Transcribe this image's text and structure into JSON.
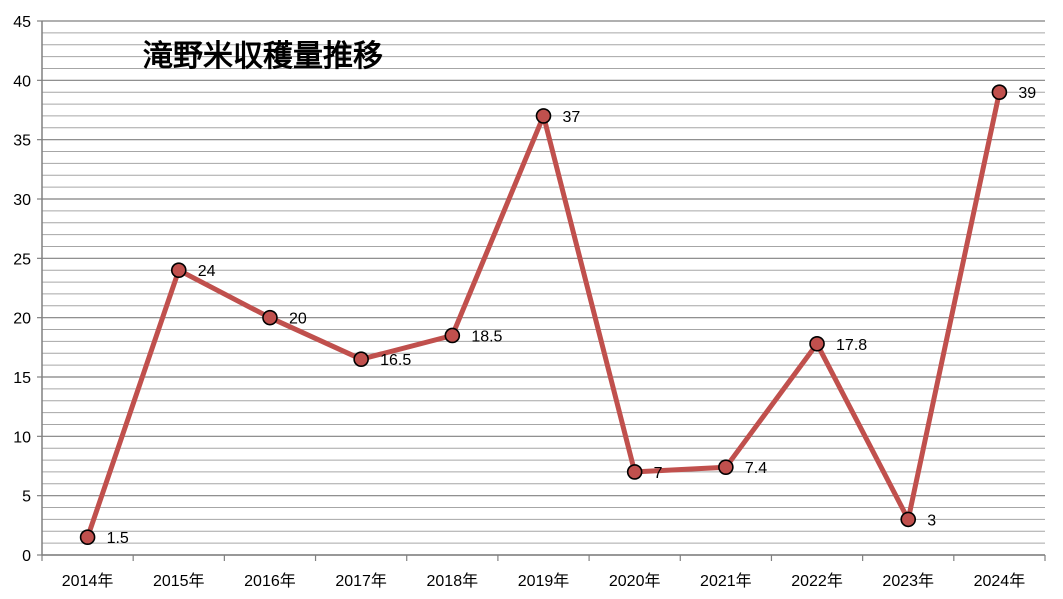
{
  "chart_data": {
    "type": "line",
    "title": "滝野米収穫量推移",
    "xlabel": "",
    "ylabel": "",
    "categories": [
      "2014年",
      "2015年",
      "2016年",
      "2017年",
      "2018年",
      "2019年",
      "2020年",
      "2021年",
      "2022年",
      "2023年",
      "2024年"
    ],
    "series": [
      {
        "values": [
          1.5,
          24,
          20,
          16.5,
          18.5,
          37,
          7,
          7.4,
          17.8,
          3,
          39
        ]
      }
    ],
    "data_labels": [
      "1.5",
      "24",
      "20",
      "16.5",
      "18.5",
      "37",
      "7",
      "7.4",
      "17.8",
      "3",
      "39"
    ],
    "ylim": [
      0,
      45
    ],
    "y_ticks": [
      0,
      5,
      10,
      15,
      20,
      25,
      30,
      35,
      40,
      45
    ],
    "y_tick_labels": [
      "0",
      "5",
      "10",
      "15",
      "20",
      "25",
      "30",
      "35",
      "40",
      "45"
    ],
    "minor_grid_step": 1,
    "grid": true,
    "legend": "none",
    "colors": {
      "line": "#c0504d",
      "marker_fill": "#c0504d",
      "marker_edge": "#000000",
      "grid_major": "#808080",
      "grid_minor": "#a6a6a6",
      "axis": "#808080"
    }
  }
}
